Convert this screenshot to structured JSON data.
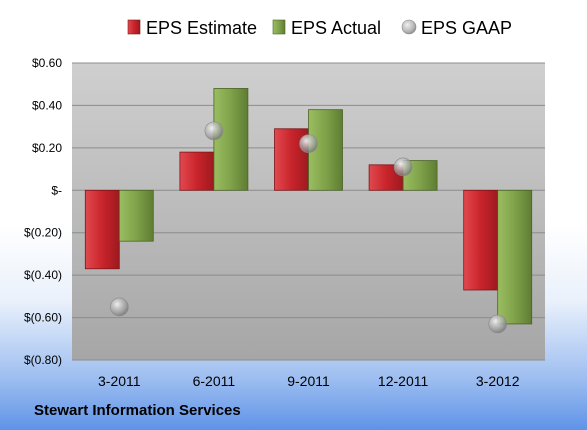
{
  "company": "Stewart Information Services",
  "colors": {
    "estimate": "#c9242b",
    "actual": "#7fa24a",
    "gaap": "#b9b9b9"
  },
  "chart_data": {
    "type": "bar",
    "categories": [
      "3-2011",
      "6-2011",
      "9-2011",
      "12-2011",
      "3-2012"
    ],
    "series": [
      {
        "name": "EPS Estimate",
        "kind": "bar",
        "values": [
          -0.37,
          0.18,
          0.29,
          0.12,
          -0.47
        ]
      },
      {
        "name": "EPS Actual",
        "kind": "bar",
        "values": [
          -0.24,
          0.48,
          0.38,
          0.14,
          -0.63
        ]
      },
      {
        "name": "EPS GAAP",
        "kind": "marker",
        "values": [
          -0.55,
          0.28,
          0.22,
          0.11,
          -0.63
        ]
      }
    ],
    "ylim": [
      -0.8,
      0.6
    ],
    "yticks": [
      0.6,
      0.4,
      0.2,
      0,
      -0.2,
      -0.4,
      -0.6,
      -0.8
    ],
    "ytick_labels": [
      "$0.60",
      "$0.40",
      "$0.20",
      "$-",
      "$(0.20)",
      "$(0.40)",
      "$(0.60)",
      "$(0.80)"
    ],
    "grid": true,
    "legend_position": "top"
  }
}
